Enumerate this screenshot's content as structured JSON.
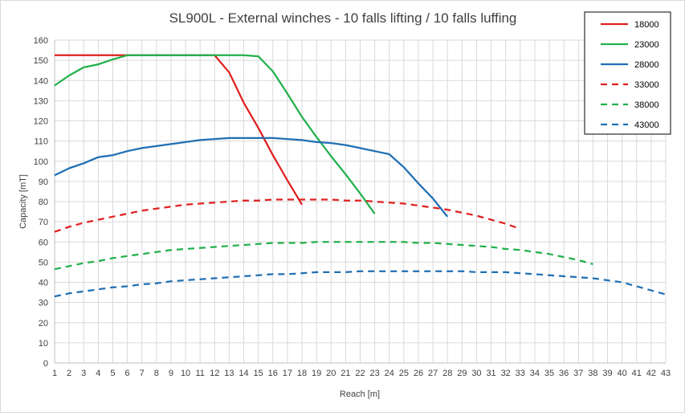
{
  "chart_data": {
    "type": "line",
    "title": "SL900L - External winches - 10 falls lifting / 10 falls luffing",
    "xlabel": "Reach [m]",
    "ylabel": "Capacity [mT]",
    "xlim": [
      1,
      43
    ],
    "ylim": [
      0,
      160
    ],
    "xticks": [
      1,
      2,
      3,
      4,
      5,
      6,
      7,
      8,
      9,
      10,
      11,
      12,
      13,
      14,
      15,
      16,
      17,
      18,
      19,
      20,
      21,
      22,
      23,
      24,
      25,
      26,
      27,
      28,
      29,
      30,
      31,
      32,
      33,
      34,
      35,
      36,
      37,
      38,
      39,
      40,
      41,
      42,
      43
    ],
    "yticks": [
      0,
      10,
      20,
      30,
      40,
      50,
      60,
      70,
      80,
      90,
      100,
      110,
      120,
      130,
      140,
      150,
      160
    ],
    "grid": true,
    "legend_position": "right",
    "series": [
      {
        "name": "18000",
        "color": "#e02020",
        "dash": "solid",
        "x": [
          1,
          12,
          13,
          14,
          15,
          16,
          17,
          18
        ],
        "y": [
          152.5,
          152.5,
          144,
          129,
          116.5,
          103,
          90.5,
          78.5
        ]
      },
      {
        "name": "23000",
        "color": "#22b04c",
        "dash": "solid",
        "x": [
          1,
          2,
          3,
          4,
          5,
          6,
          7,
          8,
          9,
          10,
          11,
          12,
          13,
          14,
          15,
          16,
          17,
          18,
          19,
          20,
          21,
          22,
          23
        ],
        "y": [
          137.5,
          142.5,
          146.5,
          148,
          150.5,
          152.5,
          152.5,
          152.5,
          152.5,
          152.5,
          152.5,
          152.5,
          152.5,
          152.5,
          152,
          144.5,
          133.5,
          122,
          112,
          102.5,
          93.5,
          84,
          74
        ]
      },
      {
        "name": "28000",
        "color": "#1f6fb4",
        "dash": "solid",
        "x": [
          1,
          2,
          3,
          4,
          5,
          6,
          7,
          8,
          9,
          10,
          11,
          12,
          13,
          14,
          15,
          16,
          17,
          18,
          19,
          20,
          21,
          22,
          23,
          24,
          25,
          26,
          27,
          28
        ],
        "y": [
          93,
          96.5,
          99,
          102,
          103,
          105,
          106.5,
          107.5,
          108.5,
          109.5,
          110.5,
          111,
          111.5,
          111.5,
          111.5,
          111.5,
          111,
          110.5,
          109.5,
          109,
          108,
          106.5,
          105,
          103.5,
          97,
          89,
          81.5,
          72.5
        ]
      },
      {
        "name": "33000",
        "color": "#e02020",
        "dash": "dash",
        "x": [
          1,
          2,
          3,
          4,
          5,
          6,
          7,
          8,
          9,
          10,
          11,
          12,
          13,
          14,
          15,
          16,
          17,
          18,
          19,
          20,
          21,
          22,
          23,
          24,
          25,
          26,
          27,
          28,
          29,
          30,
          31,
          32,
          33
        ],
        "y": [
          65,
          67.5,
          69.5,
          71,
          72.5,
          74,
          75.5,
          76.5,
          77.5,
          78.5,
          79,
          79.5,
          80,
          80.5,
          80.5,
          81,
          81,
          81,
          81,
          81,
          80.5,
          80.5,
          80,
          79.5,
          79,
          78,
          77,
          76,
          74.5,
          73,
          71,
          69,
          66.5
        ]
      },
      {
        "name": "38000",
        "color": "#22b04c",
        "dash": "dash",
        "x": [
          1,
          2,
          3,
          4,
          5,
          6,
          7,
          8,
          9,
          10,
          11,
          12,
          13,
          14,
          15,
          16,
          17,
          18,
          19,
          20,
          21,
          22,
          23,
          24,
          25,
          26,
          27,
          28,
          29,
          30,
          31,
          32,
          33,
          34,
          35,
          36,
          37,
          38
        ],
        "y": [
          46.5,
          48,
          49.5,
          50.5,
          52,
          53,
          54,
          55,
          56,
          56.5,
          57,
          57.5,
          58,
          58.5,
          59,
          59.5,
          59.5,
          59.5,
          60,
          60,
          60,
          60,
          60,
          60,
          60,
          59.5,
          59.5,
          59,
          58.5,
          58,
          57.5,
          56.5,
          56,
          55,
          54,
          52.5,
          51,
          49
        ]
      },
      {
        "name": "43000",
        "color": "#1f6fb4",
        "dash": "dash",
        "x": [
          1,
          2,
          3,
          4,
          5,
          6,
          7,
          8,
          9,
          10,
          11,
          12,
          13,
          14,
          15,
          16,
          17,
          18,
          19,
          20,
          21,
          22,
          23,
          24,
          25,
          26,
          27,
          28,
          29,
          30,
          31,
          32,
          33,
          34,
          35,
          36,
          37,
          38,
          39,
          40,
          41,
          42,
          43
        ],
        "y": [
          33,
          34.5,
          35.5,
          36.5,
          37.5,
          38,
          39,
          39.5,
          40.5,
          41,
          41.5,
          42,
          42.5,
          43,
          43.5,
          44,
          44,
          44.5,
          45,
          45,
          45,
          45.5,
          45.5,
          45.5,
          45.5,
          45.5,
          45.5,
          45.5,
          45.5,
          45,
          45,
          45,
          44.5,
          44,
          43.5,
          43,
          42.5,
          42,
          41,
          40,
          38,
          36,
          34
        ]
      }
    ]
  }
}
